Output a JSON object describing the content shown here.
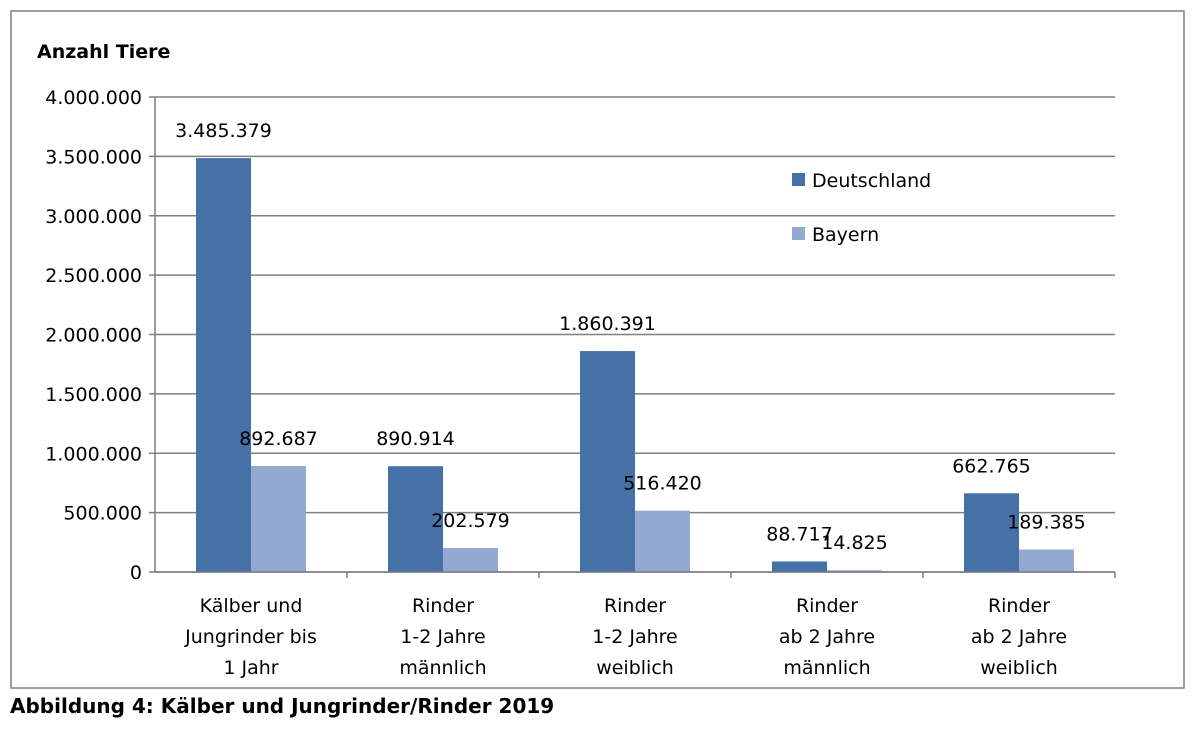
{
  "caption": "Abbildung 4: Kälber und Jungrinder/Rinder 2019",
  "colors": {
    "frame": "#7f7f7f",
    "grid": "#7f7f7f",
    "text": "#000000"
  },
  "chart_data": {
    "type": "bar",
    "title": "",
    "ylabel": "Anzahl Tiere",
    "xlabel": "",
    "ylim": [
      0,
      4000000
    ],
    "yticks": [
      0,
      500000,
      1000000,
      1500000,
      2000000,
      2500000,
      3000000,
      3500000,
      4000000
    ],
    "ytick_labels": [
      "0",
      "500.000",
      "1.000.000",
      "1.500.000",
      "2.000.000",
      "2.500.000",
      "3.000.000",
      "3.500.000",
      "4.000.000"
    ],
    "grid": true,
    "legend_position": "top-right",
    "categories": [
      [
        "Kälber und",
        "Jungrinder bis",
        "1 Jahr"
      ],
      [
        "Rinder",
        "1-2 Jahre",
        "männlich"
      ],
      [
        "Rinder",
        "1-2 Jahre",
        "weiblich"
      ],
      [
        "Rinder",
        "ab 2 Jahre",
        "männlich"
      ],
      [
        "Rinder",
        "ab 2 Jahre",
        "weiblich"
      ]
    ],
    "series": [
      {
        "name": "Deutschland",
        "color": "#4571a8",
        "values": [
          3485379,
          890914,
          1860391,
          88717,
          662765
        ],
        "labels": [
          "3.485.379",
          "890.914",
          "1.860.391",
          "88.717",
          "662.765"
        ]
      },
      {
        "name": "Bayern",
        "color": "#93a9d2",
        "values": [
          892687,
          202579,
          516420,
          14825,
          189385
        ],
        "labels": [
          "892.687",
          "202.579",
          "516.420",
          "14.825",
          "189.385"
        ]
      }
    ]
  }
}
